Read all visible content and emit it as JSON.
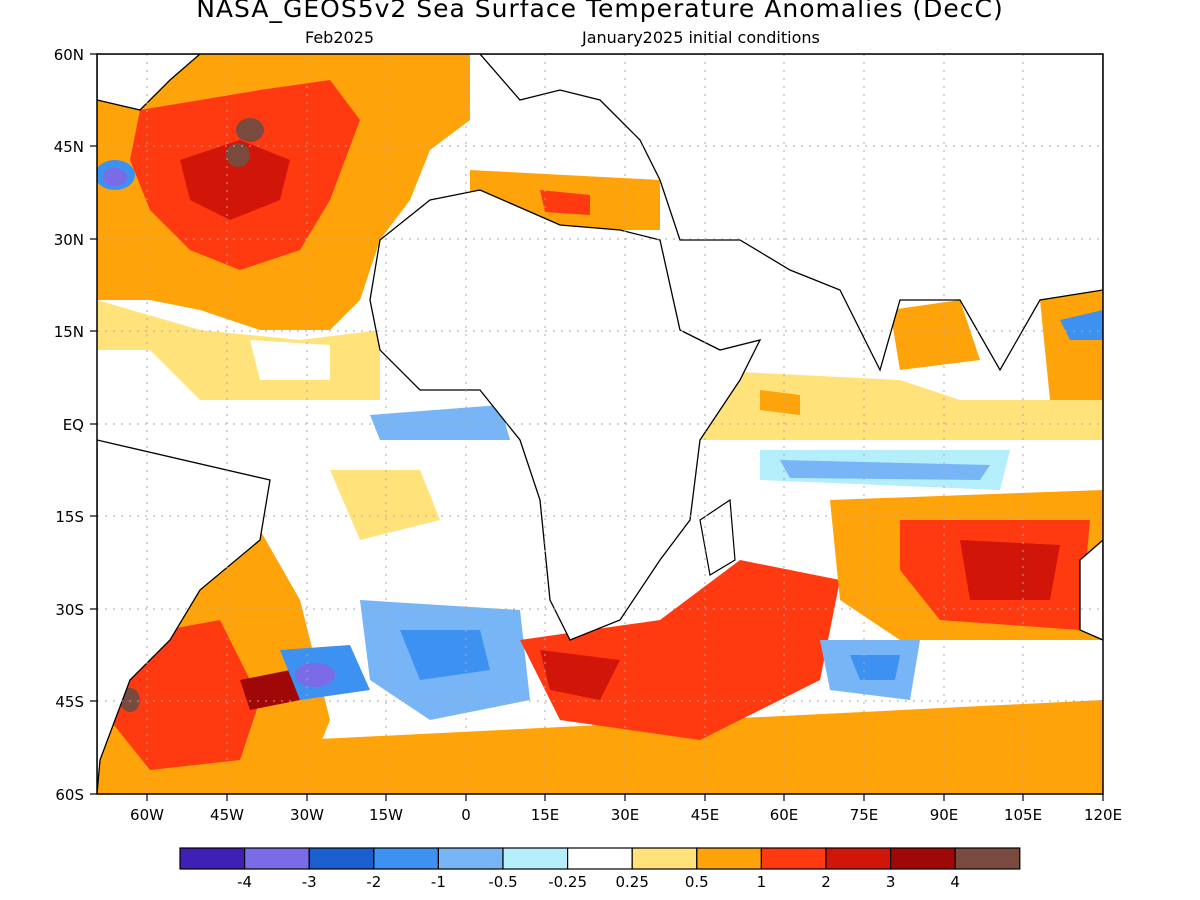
{
  "title": "NASA_GEOS5v2 Sea Surface Temperature Anomalies (DecC)",
  "subtitle_left": "Feb2025",
  "subtitle_right": "January2025 initial conditions",
  "lat_labels": [
    "60N",
    "45N",
    "30N",
    "15N",
    "EQ",
    "15S",
    "30S",
    "45S",
    "60S"
  ],
  "lon_labels": [
    "60W",
    "45W",
    "30W",
    "15W",
    "0",
    "15E",
    "30E",
    "45E",
    "60E",
    "75E",
    "90E",
    "105E",
    "120E"
  ],
  "legend": {
    "colors": [
      "#3f20b4",
      "#7a6be6",
      "#1b5fcf",
      "#3d91f0",
      "#77b5f6",
      "#b4eefa",
      "#ffffff",
      "#ffe27a",
      "#ffa30a",
      "#ff3a10",
      "#d11508",
      "#a00808",
      "#7a4a3e"
    ],
    "labels": [
      "-4",
      "-3",
      "-2",
      "-1",
      "-0.5",
      "-0.25",
      "0.25",
      "0.5",
      "1",
      "2",
      "3",
      "4"
    ]
  }
}
